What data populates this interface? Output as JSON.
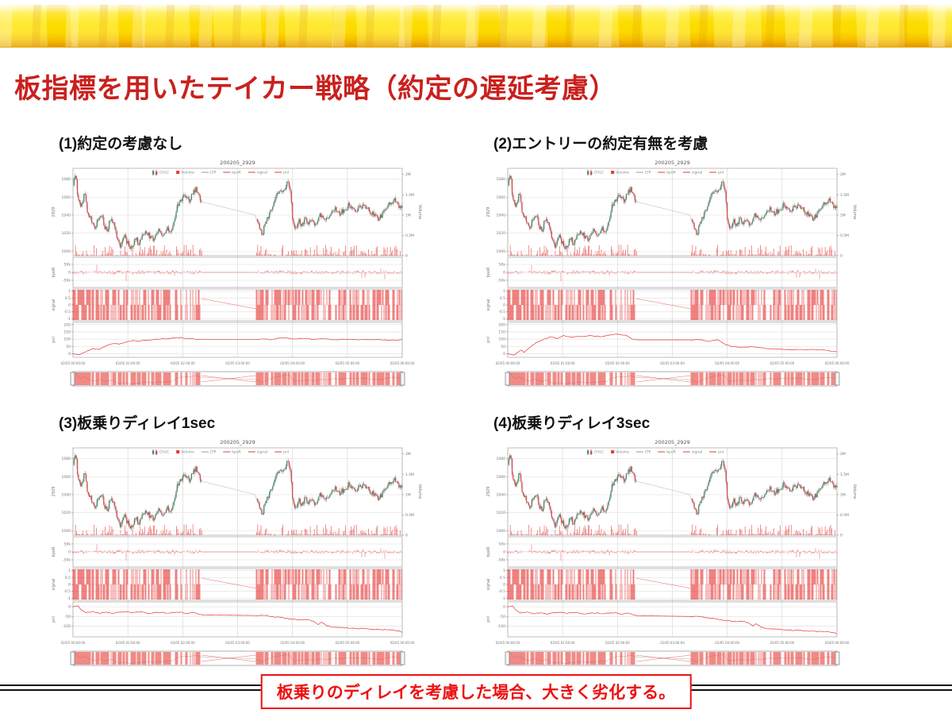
{
  "slide": {
    "title": "板指標を用いたテイカー戦略（約定の遅延考慮）",
    "note": "板乗りのディレイを考慮した場合、大きく劣化する。"
  },
  "colors": {
    "title_red": "#c9211e",
    "note_red": "#ee1111",
    "series_red": "#e53935",
    "candle_up": "#4e8d6e",
    "candle_down": "#d94f4f",
    "ltp_gray": "#9a9a9a"
  },
  "panels": [
    {
      "label": "(1)約定の考慮なし",
      "pnl": {
        "ticks": [
          [
            200,
            "200"
          ],
          [
            150,
            "150"
          ],
          [
            100,
            "100"
          ],
          [
            50,
            "50"
          ],
          [
            0,
            "0"
          ]
        ],
        "range": [
          -25,
          215
        ],
        "keypoints": [
          [
            0,
            0
          ],
          [
            0.02,
            -8
          ],
          [
            0.04,
            15
          ],
          [
            0.06,
            35
          ],
          [
            0.08,
            30
          ],
          [
            0.1,
            55
          ],
          [
            0.12,
            70
          ],
          [
            0.14,
            65
          ],
          [
            0.16,
            80
          ],
          [
            0.18,
            90
          ],
          [
            0.2,
            85
          ],
          [
            0.23,
            95
          ],
          [
            0.26,
            100
          ],
          [
            0.29,
            105
          ],
          [
            0.32,
            110
          ],
          [
            0.35,
            105
          ],
          [
            0.37,
            100
          ],
          [
            0.39,
            98
          ],
          [
            0.555,
            98
          ],
          [
            0.58,
            102
          ],
          [
            0.6,
            95
          ],
          [
            0.62,
            105
          ],
          [
            0.65,
            110
          ],
          [
            0.67,
            100
          ],
          [
            0.7,
            105
          ],
          [
            0.73,
            98
          ],
          [
            0.76,
            102
          ],
          [
            0.8,
            96
          ],
          [
            0.84,
            100
          ],
          [
            0.88,
            95
          ],
          [
            0.92,
            98
          ],
          [
            0.96,
            92
          ],
          [
            1,
            95
          ]
        ]
      }
    },
    {
      "label": "(2)エントリーの約定有無を考慮",
      "pnl": {
        "ticks": [
          [
            200,
            "200"
          ],
          [
            150,
            "150"
          ],
          [
            100,
            "100"
          ],
          [
            50,
            "50"
          ],
          [
            0,
            "0"
          ]
        ],
        "range": [
          -25,
          215
        ],
        "keypoints": [
          [
            0,
            0
          ],
          [
            0.02,
            -10
          ],
          [
            0.04,
            25
          ],
          [
            0.05,
            10
          ],
          [
            0.07,
            50
          ],
          [
            0.09,
            80
          ],
          [
            0.11,
            100
          ],
          [
            0.13,
            115
          ],
          [
            0.15,
            105
          ],
          [
            0.17,
            125
          ],
          [
            0.19,
            112
          ],
          [
            0.22,
            118
          ],
          [
            0.25,
            124
          ],
          [
            0.28,
            118
          ],
          [
            0.31,
            128
          ],
          [
            0.34,
            135
          ],
          [
            0.36,
            124
          ],
          [
            0.38,
            100
          ],
          [
            0.39,
            95
          ],
          [
            0.555,
            95
          ],
          [
            0.58,
            98
          ],
          [
            0.61,
            85
          ],
          [
            0.64,
            95
          ],
          [
            0.66,
            65
          ],
          [
            0.68,
            50
          ],
          [
            0.71,
            44
          ],
          [
            0.74,
            47
          ],
          [
            0.77,
            40
          ],
          [
            0.8,
            34
          ],
          [
            0.84,
            30
          ],
          [
            0.88,
            27
          ],
          [
            0.92,
            30
          ],
          [
            0.96,
            25
          ],
          [
            1,
            12
          ]
        ]
      }
    },
    {
      "label": "(3)板乗りディレイ1sec",
      "pnl": {
        "ticks": [
          [
            0,
            "0"
          ],
          [
            -50,
            "-50"
          ],
          [
            -100,
            "-100"
          ]
        ],
        "range": [
          -155,
          25
        ],
        "keypoints": [
          [
            0,
            0
          ],
          [
            0.015,
            6
          ],
          [
            0.025,
            -18
          ],
          [
            0.04,
            -30
          ],
          [
            0.06,
            -24
          ],
          [
            0.08,
            -34
          ],
          [
            0.1,
            -27
          ],
          [
            0.12,
            -34
          ],
          [
            0.14,
            -29
          ],
          [
            0.16,
            -24
          ],
          [
            0.18,
            -31
          ],
          [
            0.2,
            -27
          ],
          [
            0.23,
            -33
          ],
          [
            0.26,
            -29
          ],
          [
            0.29,
            -31
          ],
          [
            0.32,
            -29
          ],
          [
            0.35,
            -33
          ],
          [
            0.37,
            -30
          ],
          [
            0.39,
            -42
          ],
          [
            0.555,
            -45
          ],
          [
            0.58,
            -43
          ],
          [
            0.6,
            -50
          ],
          [
            0.63,
            -55
          ],
          [
            0.66,
            -62
          ],
          [
            0.69,
            -68
          ],
          [
            0.71,
            -66
          ],
          [
            0.73,
            -74
          ],
          [
            0.745,
            -93
          ],
          [
            0.755,
            -80
          ],
          [
            0.77,
            -98
          ],
          [
            0.79,
            -104
          ],
          [
            0.82,
            -108
          ],
          [
            0.85,
            -110
          ],
          [
            0.88,
            -113
          ],
          [
            0.91,
            -115
          ],
          [
            0.94,
            -118
          ],
          [
            0.97,
            -120
          ],
          [
            0.99,
            -124
          ],
          [
            1,
            -134
          ]
        ]
      }
    },
    {
      "label": "(4)板乗りディレイ3sec",
      "pnl": {
        "ticks": [
          [
            0,
            "0"
          ],
          [
            -50,
            "-50"
          ],
          [
            -100,
            "-100"
          ]
        ],
        "range": [
          -155,
          25
        ],
        "keypoints": [
          [
            0,
            0
          ],
          [
            0.015,
            5
          ],
          [
            0.025,
            -20
          ],
          [
            0.04,
            -32
          ],
          [
            0.06,
            -27
          ],
          [
            0.08,
            -36
          ],
          [
            0.1,
            -30
          ],
          [
            0.12,
            -37
          ],
          [
            0.14,
            -32
          ],
          [
            0.16,
            -27
          ],
          [
            0.18,
            -34
          ],
          [
            0.2,
            -30
          ],
          [
            0.23,
            -36
          ],
          [
            0.26,
            -32
          ],
          [
            0.29,
            -34
          ],
          [
            0.32,
            -32
          ],
          [
            0.35,
            -36
          ],
          [
            0.37,
            -33
          ],
          [
            0.39,
            -46
          ],
          [
            0.555,
            -50
          ],
          [
            0.58,
            -48
          ],
          [
            0.6,
            -56
          ],
          [
            0.63,
            -62
          ],
          [
            0.66,
            -70
          ],
          [
            0.69,
            -76
          ],
          [
            0.71,
            -74
          ],
          [
            0.73,
            -82
          ],
          [
            0.745,
            -100
          ],
          [
            0.755,
            -88
          ],
          [
            0.77,
            -106
          ],
          [
            0.79,
            -112
          ],
          [
            0.82,
            -116
          ],
          [
            0.85,
            -119
          ],
          [
            0.88,
            -122
          ],
          [
            0.91,
            -124
          ],
          [
            0.94,
            -127
          ],
          [
            0.97,
            -129
          ],
          [
            0.99,
            -132
          ],
          [
            1,
            -142
          ]
        ]
      }
    }
  ],
  "chart_data": {
    "type": "candlestick-multi-subplot",
    "title": "200205_2929",
    "legend": [
      "CHLC",
      "Volume",
      "LTP",
      "bpoR",
      "signal",
      "pnl"
    ],
    "x_ticks": [
      "02/05 00:00:00",
      "02/05 01:00:00",
      "02/05 02:00:00",
      "02/05 03:00:00",
      "02/05 04:00:00",
      "02/05 05:00:00",
      "02/05 06:00:00"
    ],
    "session_gap": [
      0.39,
      0.555
    ],
    "price_axis": {
      "name": "2929",
      "ticks": [
        [
          1080,
          "1080"
        ],
        [
          1060,
          "1060"
        ],
        [
          1040,
          "1040"
        ],
        [
          1020,
          "1020"
        ],
        [
          1000,
          "1000"
        ]
      ],
      "range": [
        995,
        1092
      ]
    },
    "volume_axis": {
      "name": "Volume",
      "ticks": [
        [
          2000000,
          "2M"
        ],
        [
          1500000,
          "1.5M"
        ],
        [
          1000000,
          "1M"
        ],
        [
          500000,
          "0.5M"
        ],
        [
          0,
          "0"
        ]
      ],
      "range": [
        0,
        2150000
      ]
    },
    "bpoR_axis": {
      "name": "bpoR",
      "ticks": [
        [
          50000,
          "50k"
        ],
        [
          0,
          "0"
        ],
        [
          -50000,
          "-50k"
        ]
      ],
      "range": [
        -95000,
        95000
      ]
    },
    "signal_axis": {
      "name": "signal",
      "ticks": [
        [
          1,
          "1"
        ],
        [
          0.5,
          "0.5"
        ],
        [
          0,
          "0"
        ],
        [
          -0.5,
          "-0.5"
        ],
        [
          -1,
          "-1"
        ]
      ],
      "range": [
        -1.15,
        1.15
      ]
    },
    "pnl_axis_name": "pnl",
    "price_keypoints": [
      [
        0,
        1072
      ],
      [
        0.008,
        1088
      ],
      [
        0.015,
        1058
      ],
      [
        0.025,
        1048
      ],
      [
        0.035,
        1065
      ],
      [
        0.045,
        1042
      ],
      [
        0.055,
        1035
      ],
      [
        0.065,
        1025
      ],
      [
        0.075,
        1035
      ],
      [
        0.085,
        1042
      ],
      [
        0.095,
        1028
      ],
      [
        0.105,
        1022
      ],
      [
        0.115,
        1038
      ],
      [
        0.125,
        1028
      ],
      [
        0.135,
        1012
      ],
      [
        0.145,
        1005
      ],
      [
        0.155,
        1018
      ],
      [
        0.165,
        1010
      ],
      [
        0.175,
        1002
      ],
      [
        0.19,
        1014
      ],
      [
        0.2,
        1008
      ],
      [
        0.215,
        1022
      ],
      [
        0.23,
        1018
      ],
      [
        0.245,
        1012
      ],
      [
        0.26,
        1022
      ],
      [
        0.275,
        1018
      ],
      [
        0.285,
        1026
      ],
      [
        0.3,
        1022
      ],
      [
        0.315,
        1048
      ],
      [
        0.33,
        1058
      ],
      [
        0.345,
        1062
      ],
      [
        0.355,
        1056
      ],
      [
        0.365,
        1066
      ],
      [
        0.375,
        1070
      ],
      [
        0.385,
        1058
      ],
      [
        0.39,
        1055
      ],
      [
        0.555,
        1040
      ],
      [
        0.565,
        1028
      ],
      [
        0.575,
        1018
      ],
      [
        0.585,
        1032
      ],
      [
        0.6,
        1045
      ],
      [
        0.615,
        1060
      ],
      [
        0.63,
        1066
      ],
      [
        0.645,
        1072
      ],
      [
        0.655,
        1078
      ],
      [
        0.662,
        1060
      ],
      [
        0.668,
        1030
      ],
      [
        0.675,
        1022
      ],
      [
        0.685,
        1035
      ],
      [
        0.695,
        1028
      ],
      [
        0.705,
        1038
      ],
      [
        0.715,
        1030
      ],
      [
        0.725,
        1035
      ],
      [
        0.735,
        1028
      ],
      [
        0.75,
        1042
      ],
      [
        0.765,
        1035
      ],
      [
        0.78,
        1040
      ],
      [
        0.795,
        1048
      ],
      [
        0.81,
        1042
      ],
      [
        0.825,
        1046
      ],
      [
        0.84,
        1052
      ],
      [
        0.855,
        1044
      ],
      [
        0.87,
        1048
      ],
      [
        0.885,
        1052
      ],
      [
        0.9,
        1044
      ],
      [
        0.915,
        1040
      ],
      [
        0.93,
        1036
      ],
      [
        0.945,
        1045
      ],
      [
        0.96,
        1052
      ],
      [
        0.975,
        1058
      ],
      [
        0.99,
        1048
      ],
      [
        1,
        1052
      ]
    ]
  }
}
